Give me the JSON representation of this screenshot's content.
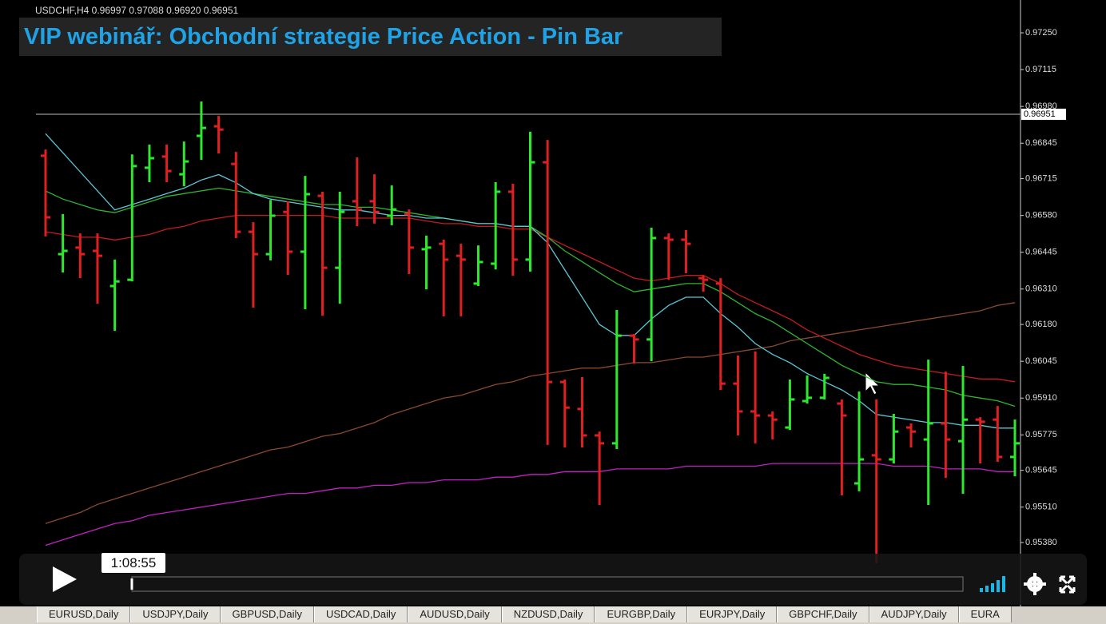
{
  "window": {
    "symbol_info": "USDCHF,H4  0.96997 0.97088 0.96920 0.96951"
  },
  "overlay_title": "VIP webinář: Obchodní strategie Price Action - Pin Bar",
  "chart_data": {
    "type": "ohlc",
    "up_color": "#2ee82e",
    "down_color": "#e02020",
    "open": [
      0.96799,
      0.96438,
      0.96462,
      0.9645,
      0.96321,
      0.96344,
      0.96755,
      0.96796,
      0.96731,
      0.96872,
      0.96907,
      0.96769,
      0.9652,
      0.96438,
      0.96593,
      0.96447,
      0.96652,
      0.96388,
      0.96632,
      0.96632,
      0.96579,
      0.96585,
      0.96456,
      0.96476,
      0.96432,
      0.9633,
      0.96403,
      0.96667,
      0.96418,
      0.96775,
      0.95969,
      0.9587,
      0.95773,
      0.95744,
      0.96139,
      0.96125,
      0.96497,
      0.96491,
      0.9635,
      0.9633,
      0.95963,
      0.95861,
      0.95846,
      0.95802,
      0.95899,
      0.95911,
      0.9589,
      0.95597,
      0.957,
      0.95685,
      0.95802,
      0.95758,
      0.95817,
      0.95752,
      0.95831,
      0.95831,
      0.95694
    ],
    "high": [
      0.96822,
      0.96585,
      0.96514,
      0.96514,
      0.96418,
      0.96804,
      0.9684,
      0.9684,
      0.96851,
      0.96998,
      0.96945,
      0.96813,
      0.96555,
      0.96637,
      0.96632,
      0.96725,
      0.96667,
      0.96667,
      0.96793,
      0.96731,
      0.9669,
      0.96602,
      0.96506,
      0.96491,
      0.96476,
      0.9647,
      0.96702,
      0.96696,
      0.96887,
      0.96857,
      0.95978,
      0.95987,
      0.95787,
      0.96233,
      0.96145,
      0.96535,
      0.96514,
      0.96526,
      0.96359,
      0.9635,
      0.96066,
      0.96081,
      0.95861,
      0.95978,
      0.95993,
      0.95999,
      0.95905,
      0.95934,
      0.95905,
      0.95852,
      0.95817,
      0.96051,
      0.96007,
      0.96028,
      0.9584,
      0.95881,
      0.95831
    ],
    "low": [
      0.96503,
      0.96371,
      0.9635,
      0.96256,
      0.96157,
      0.96338,
      0.96702,
      0.96702,
      0.96687,
      0.96784,
      0.96807,
      0.96497,
      0.96242,
      0.96415,
      0.96362,
      0.96236,
      0.96212,
      0.96256,
      0.96541,
      0.9655,
      0.96544,
      0.96365,
      0.96309,
      0.9621,
      0.9621,
      0.96321,
      0.96382,
      0.96359,
      0.96374,
      0.95738,
      0.95729,
      0.95729,
      0.95518,
      0.95723,
      0.96037,
      0.96045,
      0.96344,
      0.96368,
      0.963,
      0.9594,
      0.95773,
      0.95744,
      0.95758,
      0.95793,
      0.9589,
      0.95905,
      0.95553,
      0.95568,
      0.95304,
      0.9567,
      0.95729,
      0.95518,
      0.95617,
      0.95559,
      0.9567,
      0.95676,
      0.95623
    ],
    "close": [
      0.96573,
      0.9645,
      0.96438,
      0.96432,
      0.96338,
      0.96761,
      0.9679,
      0.96743,
      0.96778,
      0.96901,
      0.96895,
      0.9652,
      0.96438,
      0.96579,
      0.96447,
      0.96658,
      0.96388,
      0.96593,
      0.96602,
      0.96593,
      0.96602,
      0.96462,
      0.96462,
      0.96418,
      0.96418,
      0.96409,
      0.96667,
      0.96418,
      0.96775,
      0.95969,
      0.95875,
      0.95773,
      0.95744,
      0.96139,
      0.96125,
      0.96497,
      0.96491,
      0.96476,
      0.96344,
      0.95963,
      0.95861,
      0.95846,
      0.95831,
      0.95905,
      0.95911,
      0.95984,
      0.95846,
      0.95685,
      0.95685,
      0.95787,
      0.95787,
      0.95817,
      0.95758,
      0.95831,
      0.95823,
      0.95694,
      0.95744
    ],
    "series": [
      {
        "type": "line",
        "color": "#c21fc4",
        "values": [
          0.9537,
          0.9539,
          0.9541,
          0.9543,
          0.9545,
          0.9546,
          0.9548,
          0.9549,
          0.955,
          0.9551,
          0.9552,
          0.9553,
          0.9554,
          0.9555,
          0.9556,
          0.9556,
          0.9557,
          0.9558,
          0.9558,
          0.9559,
          0.9559,
          0.956,
          0.956,
          0.9561,
          0.9561,
          0.9561,
          0.9562,
          0.9562,
          0.9563,
          0.9563,
          0.9564,
          0.9564,
          0.9564,
          0.9565,
          0.9565,
          0.9565,
          0.9565,
          0.9566,
          0.9566,
          0.9566,
          0.9566,
          0.9566,
          0.9567,
          0.9567,
          0.9567,
          0.9567,
          0.9567,
          0.9567,
          0.9567,
          0.9566,
          0.9566,
          0.9566,
          0.9565,
          0.9565,
          0.9565,
          0.9564,
          0.9564
        ]
      },
      {
        "type": "line",
        "color": "#8a4a2c",
        "values": [
          0.9545,
          0.9547,
          0.9549,
          0.9552,
          0.9554,
          0.9556,
          0.9558,
          0.956,
          0.9562,
          0.9564,
          0.9566,
          0.9568,
          0.957,
          0.9572,
          0.9573,
          0.9575,
          0.9577,
          0.9578,
          0.958,
          0.9582,
          0.9585,
          0.9587,
          0.9589,
          0.9591,
          0.9592,
          0.9594,
          0.9596,
          0.9597,
          0.9599,
          0.96,
          0.9601,
          0.9602,
          0.9602,
          0.9603,
          0.9604,
          0.9604,
          0.9605,
          0.9606,
          0.9606,
          0.9607,
          0.9608,
          0.9609,
          0.961,
          0.9612,
          0.9613,
          0.9614,
          0.9615,
          0.9616,
          0.9617,
          0.9618,
          0.9619,
          0.962,
          0.9621,
          0.9622,
          0.9623,
          0.9625,
          0.9626
        ]
      },
      {
        "type": "line",
        "color": "#c41c1c",
        "values": [
          0.9652,
          0.9651,
          0.965,
          0.965,
          0.9649,
          0.965,
          0.9651,
          0.9653,
          0.9654,
          0.9656,
          0.9657,
          0.9658,
          0.9658,
          0.9658,
          0.9658,
          0.9658,
          0.9658,
          0.9657,
          0.9657,
          0.9657,
          0.9657,
          0.9657,
          0.9656,
          0.9655,
          0.9655,
          0.9654,
          0.9654,
          0.9653,
          0.9653,
          0.965,
          0.9647,
          0.9644,
          0.9641,
          0.9638,
          0.9635,
          0.9634,
          0.9635,
          0.9636,
          0.9636,
          0.9633,
          0.9629,
          0.9626,
          0.9623,
          0.962,
          0.9616,
          0.9613,
          0.961,
          0.9607,
          0.9605,
          0.9603,
          0.9602,
          0.9601,
          0.96,
          0.9599,
          0.9598,
          0.9598,
          0.9597
        ]
      },
      {
        "type": "line",
        "color": "#2fb52f",
        "values": [
          0.9667,
          0.9664,
          0.9662,
          0.966,
          0.9659,
          0.9661,
          0.9663,
          0.9665,
          0.9666,
          0.9667,
          0.9668,
          0.9667,
          0.9666,
          0.9665,
          0.9664,
          0.9663,
          0.9662,
          0.9662,
          0.9661,
          0.9661,
          0.966,
          0.9659,
          0.9658,
          0.9657,
          0.9656,
          0.9655,
          0.9655,
          0.9654,
          0.9654,
          0.965,
          0.9645,
          0.9641,
          0.9637,
          0.9633,
          0.963,
          0.9631,
          0.9632,
          0.9633,
          0.9633,
          0.963,
          0.9626,
          0.9622,
          0.9619,
          0.9615,
          0.9611,
          0.9607,
          0.9603,
          0.96,
          0.9597,
          0.9596,
          0.9596,
          0.9595,
          0.9594,
          0.9592,
          0.9591,
          0.959,
          0.9588
        ]
      },
      {
        "type": "line",
        "color": "#5cc6d6",
        "values": [
          0.9688,
          0.9681,
          0.9674,
          0.9667,
          0.966,
          0.9662,
          0.9664,
          0.9666,
          0.9668,
          0.9671,
          0.9673,
          0.967,
          0.9666,
          0.9664,
          0.9663,
          0.9662,
          0.9661,
          0.966,
          0.966,
          0.9659,
          0.9658,
          0.9658,
          0.9657,
          0.9657,
          0.9656,
          0.9655,
          0.9655,
          0.9654,
          0.9654,
          0.9648,
          0.9638,
          0.9628,
          0.9618,
          0.9614,
          0.9614,
          0.962,
          0.9625,
          0.9628,
          0.9628,
          0.9622,
          0.9617,
          0.9611,
          0.9607,
          0.9604,
          0.96,
          0.9597,
          0.9594,
          0.959,
          0.9585,
          0.9584,
          0.9583,
          0.9582,
          0.9582,
          0.9581,
          0.9581,
          0.958,
          0.958
        ]
      }
    ],
    "ylim": [
      0.95216,
      0.97341
    ],
    "yticks": [
      {
        "value": 0.9725,
        "label": "0.97250"
      },
      {
        "value": 0.97115,
        "label": "0.97115"
      },
      {
        "value": 0.9698,
        "label": "0.96980"
      },
      {
        "value": 0.96845,
        "label": "0.96845"
      },
      {
        "value": 0.96715,
        "label": "0.96715"
      },
      {
        "value": 0.9658,
        "label": "0.96580"
      },
      {
        "value": 0.96445,
        "label": "0.96445"
      },
      {
        "value": 0.9631,
        "label": "0.96310"
      },
      {
        "value": 0.9618,
        "label": "0.96180"
      },
      {
        "value": 0.96045,
        "label": "0.96045"
      },
      {
        "value": 0.9591,
        "label": "0.95910"
      },
      {
        "value": 0.95775,
        "label": "0.95775"
      },
      {
        "value": 0.95645,
        "label": "0.95645"
      },
      {
        "value": 0.9551,
        "label": "0.95510"
      },
      {
        "value": 0.9538,
        "label": "0.95380"
      }
    ],
    "current_price": {
      "value": 0.96951,
      "label": "0.96951"
    },
    "grid": false
  },
  "player": {
    "time": "1:08:55"
  },
  "tabs": [
    "EURUSD,Daily",
    "USDJPY,Daily",
    "GBPUSD,Daily",
    "USDCAD,Daily",
    "AUDUSD,Daily",
    "NZDUSD,Daily",
    "EURGBP,Daily",
    "EURJPY,Daily",
    "GBPCHF,Daily",
    "AUDJPY,Daily",
    "EURA"
  ]
}
